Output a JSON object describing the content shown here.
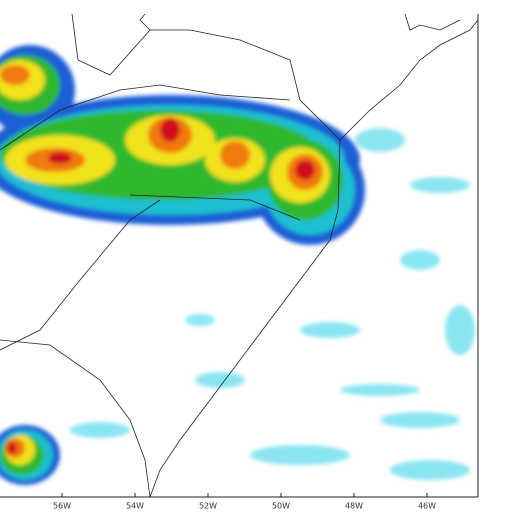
{
  "map": {
    "longitude_labels": [
      "56W",
      "54W",
      "52W",
      "50W",
      "48W",
      "46W"
    ]
  }
}
